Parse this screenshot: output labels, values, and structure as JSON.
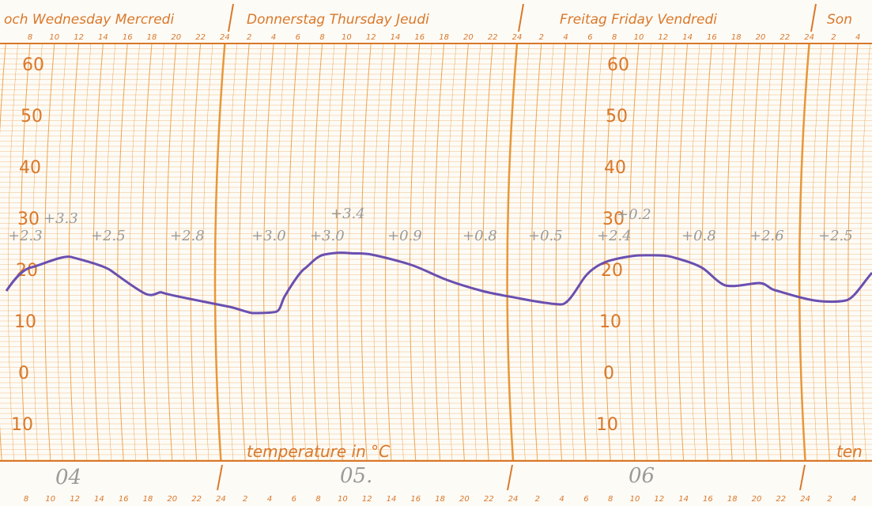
{
  "days": [
    "och Wednesday Mercredi",
    "Donnerstag Thursday Jeudi",
    "Freitag Friday Vendredi",
    "Son"
  ],
  "hour_labels": [
    "8",
    "10",
    "12",
    "14",
    "16",
    "18",
    "20",
    "22",
    "24",
    "2",
    "4",
    "6",
    "8",
    "10",
    "12",
    "14",
    "16",
    "18",
    "20",
    "22",
    "24",
    "2",
    "4",
    "6",
    "8",
    "10",
    "12",
    "14",
    "16",
    "18",
    "20",
    "22",
    "24",
    "2",
    "4"
  ],
  "temperature_labels": [
    "60",
    "50",
    "40",
    "30",
    "20",
    "10",
    "0",
    "10"
  ],
  "axis_label": "temperature in °C",
  "axis_label_cut": "ten",
  "dates": [
    "04",
    "05.",
    "06"
  ],
  "notes": [
    "+3.3",
    "+3.4",
    "+0.2",
    "+2.3",
    "+2.5",
    "+2.8",
    "+3.0",
    "+3.0",
    "+0.9",
    "+0.8",
    "+0.5",
    "+2.4",
    "+0.8",
    "+2.6",
    "+2.5"
  ]
}
